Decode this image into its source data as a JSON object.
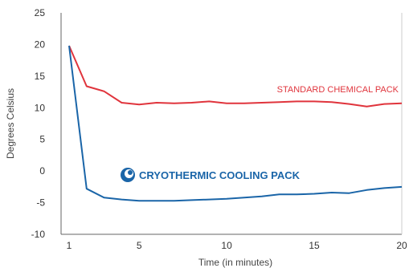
{
  "chart_data": {
    "type": "line",
    "title": "",
    "xlabel": "Time (in minutes)",
    "ylabel": "Degrees Celsius",
    "xlim": [
      1,
      20
    ],
    "ylim": [
      -10,
      25
    ],
    "x_ticks": [
      1,
      5,
      10,
      15,
      20
    ],
    "y_ticks": [
      25,
      20,
      15,
      10,
      5,
      0,
      -5,
      -10
    ],
    "grid": "vertical-right-edge-only",
    "legend": "inline-labels",
    "series": [
      {
        "name": "STANDARD CHEMICAL PACK",
        "color": "#e0343c",
        "x": [
          1,
          2,
          3,
          4,
          5,
          6,
          7,
          8,
          9,
          10,
          11,
          12,
          13,
          14,
          15,
          16,
          17,
          18,
          19,
          20
        ],
        "y": [
          19.8,
          13.4,
          12.6,
          10.8,
          10.5,
          10.8,
          10.7,
          10.8,
          11.0,
          10.7,
          10.7,
          10.8,
          10.9,
          11.0,
          11.0,
          10.9,
          10.6,
          10.2,
          10.6,
          10.7
        ]
      },
      {
        "name": "CRYOTHERMIC COOLING PACK",
        "color": "#1a65a8",
        "x": [
          1,
          2,
          3,
          4,
          5,
          6,
          7,
          8,
          9,
          10,
          11,
          12,
          13,
          14,
          15,
          16,
          17,
          18,
          19,
          20
        ],
        "y": [
          19.8,
          -2.8,
          -4.2,
          -4.5,
          -4.7,
          -4.7,
          -4.7,
          -4.6,
          -4.5,
          -4.4,
          -4.2,
          -4.0,
          -3.7,
          -3.7,
          -3.6,
          -3.4,
          -3.5,
          -3.0,
          -2.7,
          -2.5
        ]
      }
    ]
  },
  "icons": {
    "cryothermic_logo": "ring-logo-icon"
  }
}
